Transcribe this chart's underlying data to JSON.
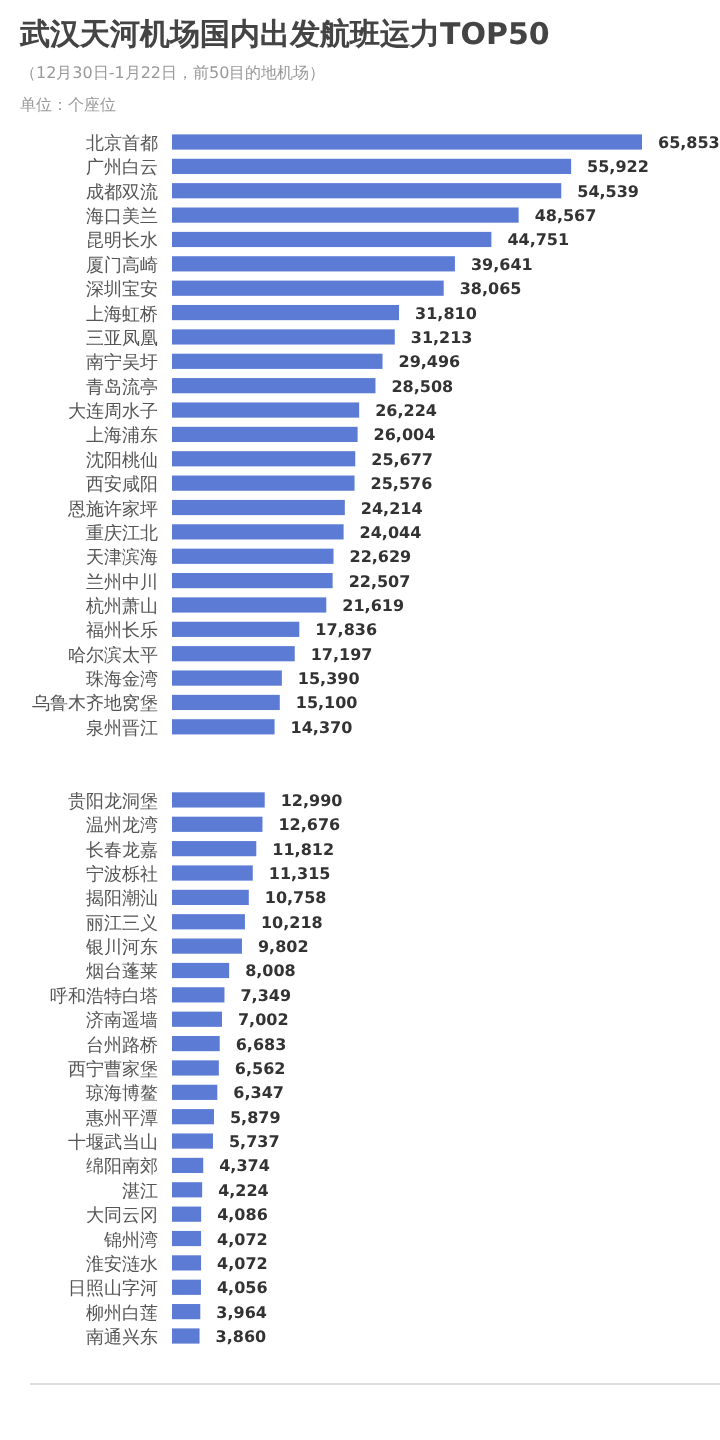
{
  "chart_data": {
    "type": "bar",
    "orientation": "horizontal",
    "title": "武汉天河机场国内出发航班运力TOP50",
    "subtitle": "（12月30日-1月22日，前50目的地机场）",
    "annotations": [
      "单位：个座位"
    ],
    "color": "#5b7bd5",
    "categories": [
      "北京首都",
      "广州白云",
      "成都双流",
      "海口美兰",
      "昆明长水",
      "厦门高崎",
      "深圳宝安",
      "上海虹桥",
      "三亚凤凰",
      "南宁吴圩",
      "青岛流亭",
      "大连周水子",
      "上海浦东",
      "沈阳桃仙",
      "西安咸阳",
      "恩施许家坪",
      "重庆江北",
      "天津滨海",
      "兰州中川",
      "杭州萧山",
      "福州长乐",
      "哈尔滨太平",
      "珠海金湾",
      "乌鲁木齐地窝堡",
      "泉州晋江",
      null,
      null,
      "贵阳龙洞堡",
      "温州龙湾",
      "长春龙嘉",
      "宁波栎社",
      "揭阳潮汕",
      "丽江三义",
      "银川河东",
      "烟台蓬莱",
      "呼和浩特白塔",
      "济南遥墙",
      "台州路桥",
      "西宁曹家堡",
      "琼海博鳌",
      "惠州平潭",
      "十堰武当山",
      "绵阳南郊",
      "湛江",
      "大同云冈",
      "锦州湾",
      "淮安涟水",
      "日照山字河",
      "柳州白莲",
      "南通兴东"
    ],
    "values": [
      65853,
      55922,
      54539,
      48567,
      44751,
      39641,
      38065,
      31810,
      31213,
      29496,
      28508,
      26224,
      26004,
      25677,
      25576,
      24214,
      24044,
      22629,
      22507,
      21619,
      17836,
      17197,
      15390,
      15100,
      14370,
      null,
      null,
      12990,
      12676,
      11812,
      11315,
      10758,
      10218,
      9802,
      8008,
      7349,
      7002,
      6683,
      6562,
      6347,
      5879,
      5737,
      4374,
      4224,
      4086,
      4072,
      4072,
      4056,
      3964,
      3860
    ],
    "value_labels": [
      "65,853",
      "55,922",
      "54,539",
      "48,567",
      "44,751",
      "39,641",
      "38,065",
      "31,810",
      "31,213",
      "29,496",
      "28,508",
      "26,224",
      "26,004",
      "25,677",
      "25,576",
      "24,214",
      "24,044",
      "22,629",
      "22,507",
      "21,619",
      "17,836",
      "17,197",
      "15,390",
      "15,100",
      "14,370",
      null,
      null,
      "12,990",
      "12,676",
      "11,812",
      "11,315",
      "10,758",
      "10,218",
      "9,802",
      "8,008",
      "7,349",
      "7,002",
      "6,683",
      "6,562",
      "6,347",
      "5,879",
      "5,737",
      "4,374",
      "4,224",
      "4,086",
      "4,072",
      "4,072",
      "4,056",
      "3,964",
      "3,860"
    ]
  }
}
